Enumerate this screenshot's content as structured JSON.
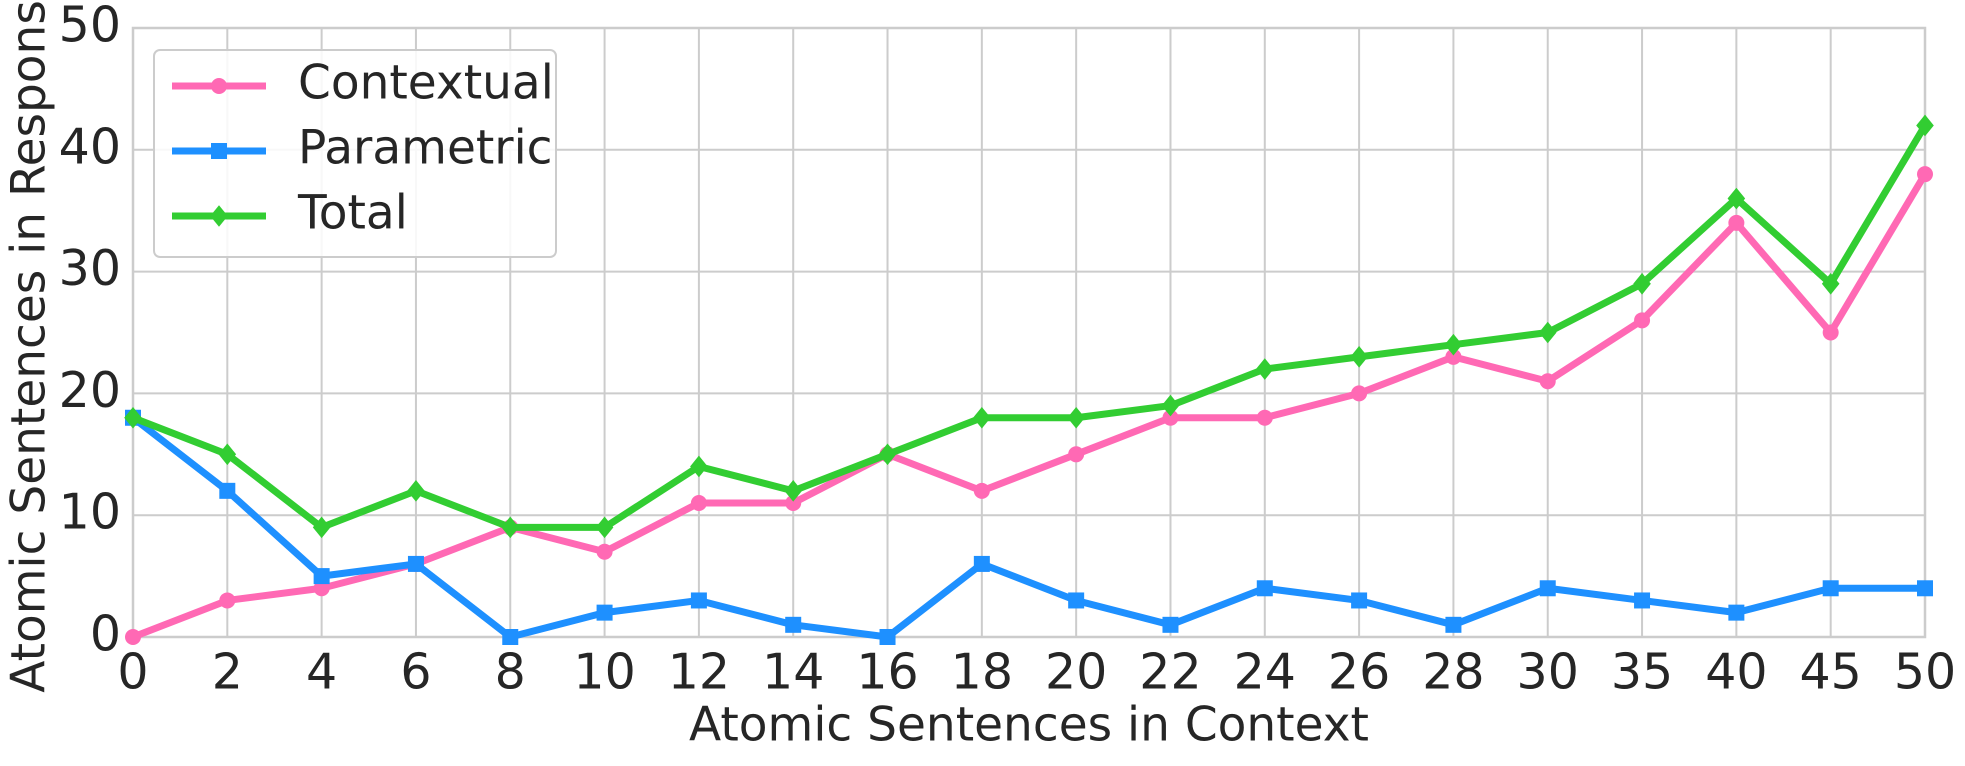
{
  "chart_data": {
    "type": "line",
    "xlabel": "Atomic Sentences in Context",
    "ylabel": "Atomic Sentences in Response",
    "categories": [
      "0",
      "2",
      "4",
      "6",
      "8",
      "10",
      "12",
      "14",
      "16",
      "18",
      "20",
      "22",
      "24",
      "26",
      "28",
      "30",
      "35",
      "40",
      "45",
      "50"
    ],
    "series": [
      {
        "name": "Contextual",
        "color": "#ff69b4",
        "marker": "circle",
        "values": [
          0,
          3,
          4,
          6,
          9,
          7,
          11,
          11,
          15,
          12,
          15,
          18,
          18,
          20,
          23,
          21,
          26,
          34,
          25,
          38
        ]
      },
      {
        "name": "Parametric",
        "color": "#1e90ff",
        "marker": "square",
        "values": [
          18,
          12,
          5,
          6,
          0,
          2,
          3,
          1,
          0,
          6,
          3,
          1,
          4,
          3,
          1,
          4,
          3,
          2,
          4,
          4
        ]
      },
      {
        "name": "Total",
        "color": "#32cd32",
        "marker": "diamond",
        "values": [
          18,
          15,
          9,
          12,
          9,
          9,
          14,
          12,
          15,
          18,
          18,
          19,
          22,
          23,
          24,
          25,
          29,
          36,
          29,
          42
        ]
      }
    ],
    "ylim": [
      0,
      50
    ],
    "yticks": [
      0,
      10,
      20,
      30,
      40,
      50
    ],
    "grid": true,
    "legend": "upper left"
  }
}
